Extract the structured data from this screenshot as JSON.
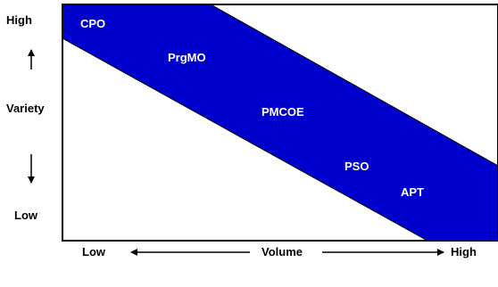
{
  "colors": {
    "band_fill": "#0000cc",
    "band_stroke": "#000000",
    "frame": "#000000",
    "axis_text": "#000000",
    "band_text": "#ffffff"
  },
  "y_axis": {
    "high_label": "High",
    "title": "Variety",
    "low_label": "Low",
    "arrow_up_icon": "arrow-up-icon",
    "arrow_down_icon": "arrow-down-icon"
  },
  "x_axis": {
    "low_label": "Low",
    "title": "Volume",
    "high_label": "High",
    "arrow_left_icon": "arrow-left-icon",
    "arrow_right_icon": "arrow-right-icon"
  },
  "band_labels": [
    "CPO",
    "PrgMO",
    "PMCOE",
    "PSO",
    "APT"
  ]
}
